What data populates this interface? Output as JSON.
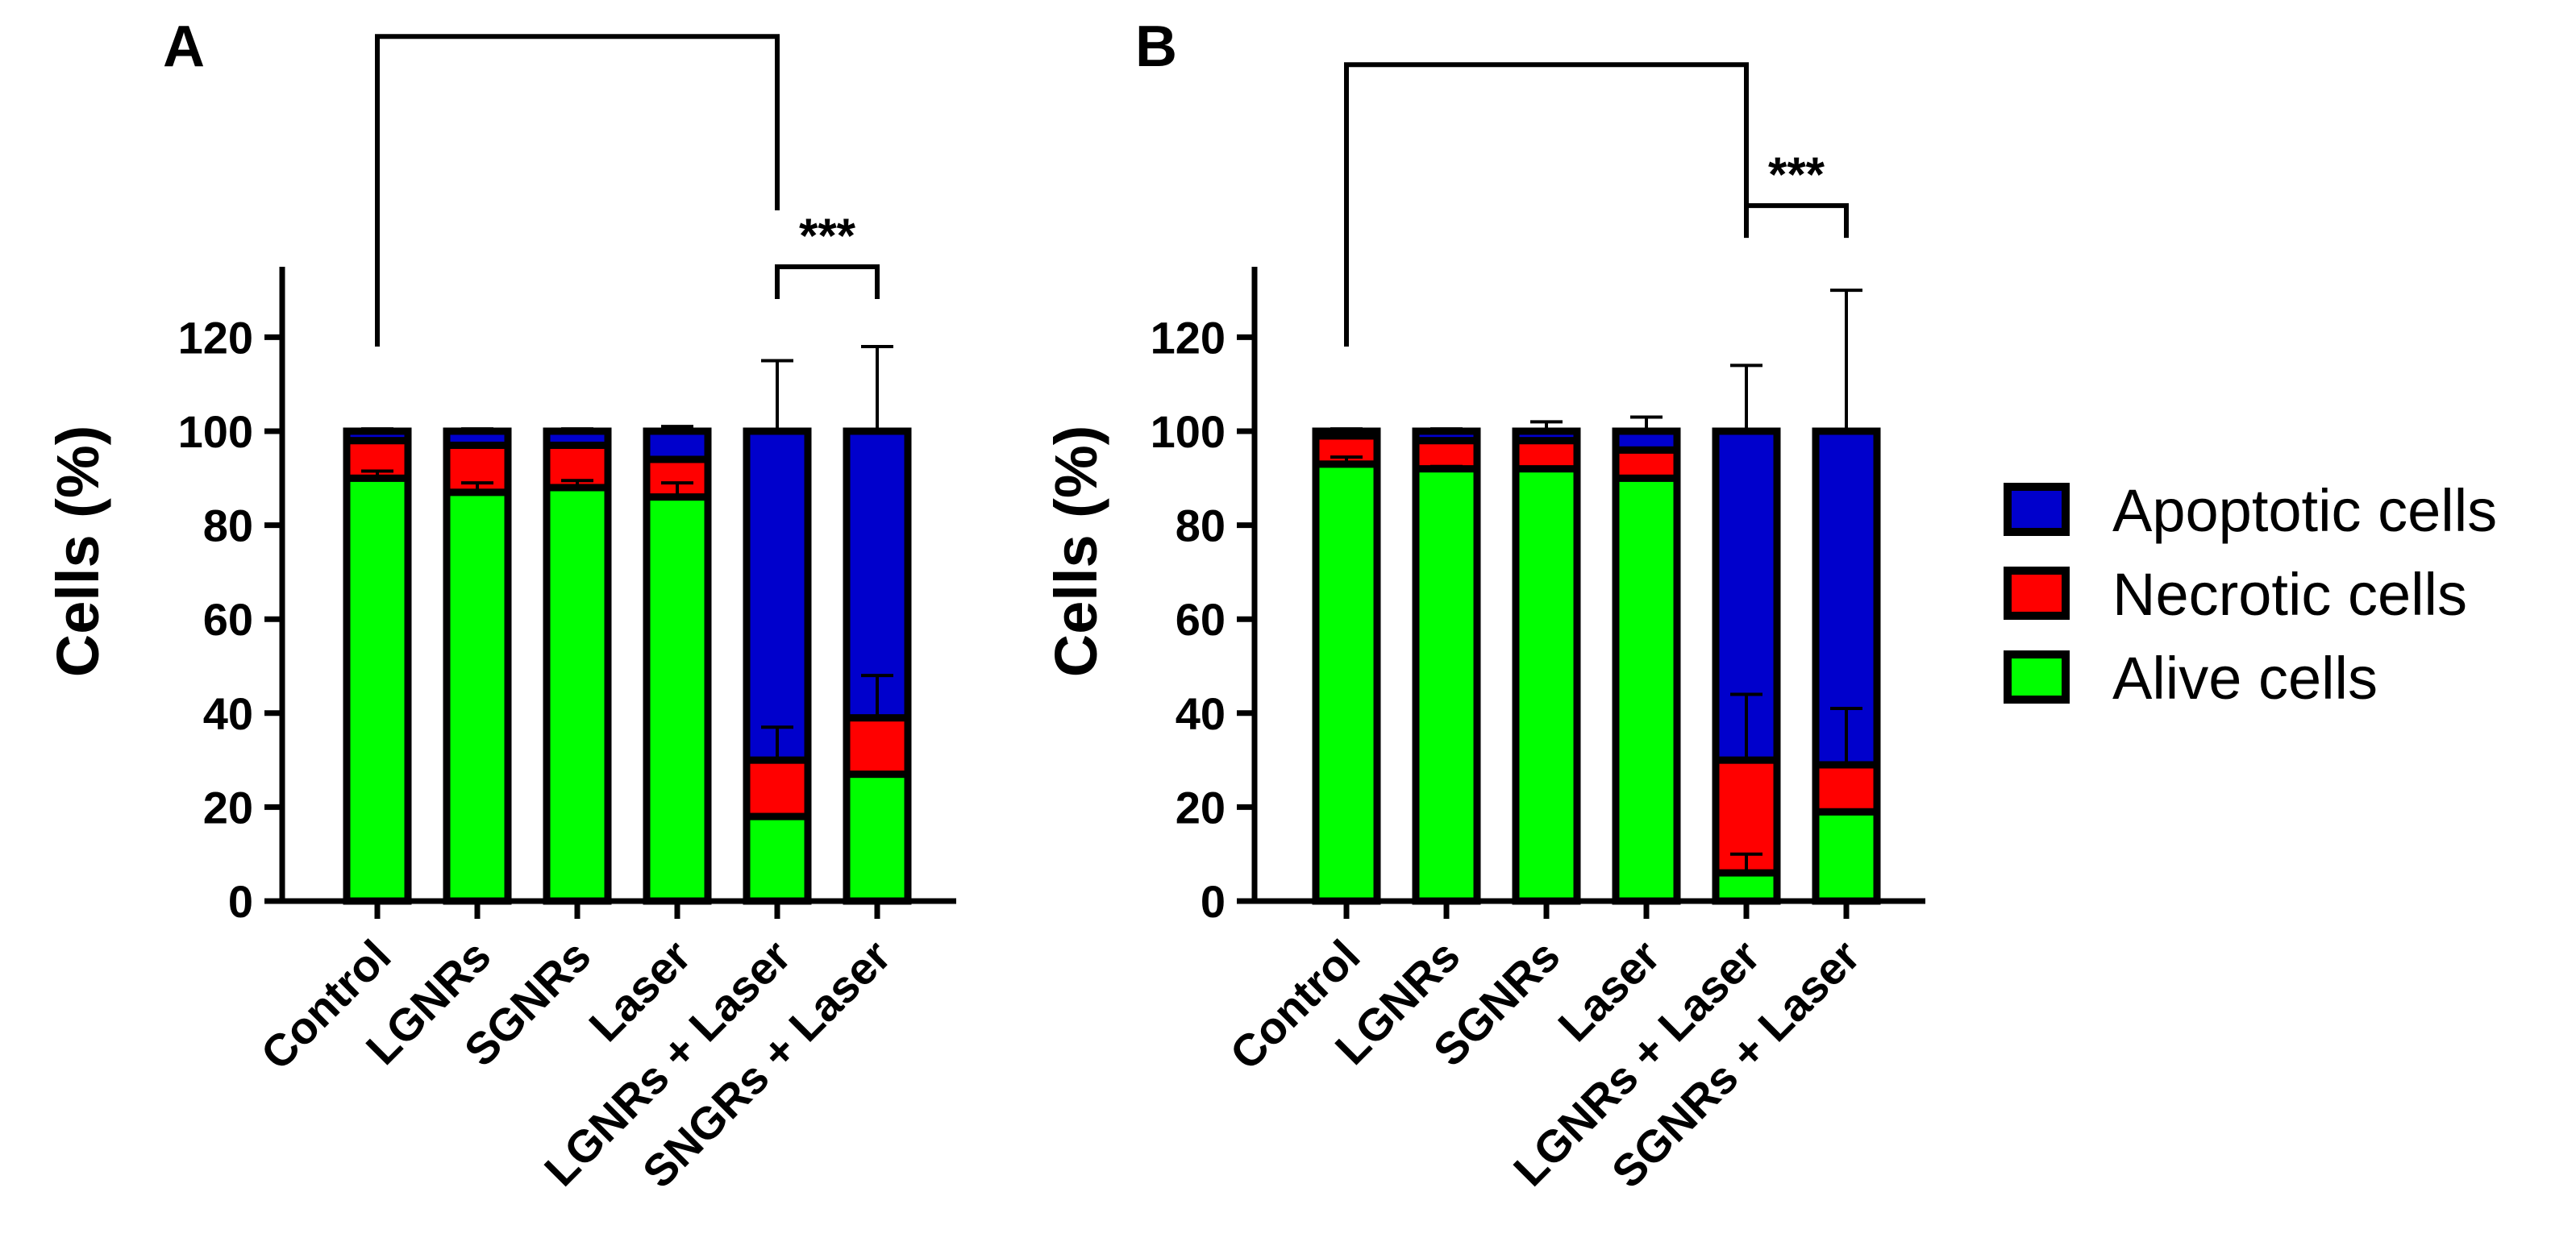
{
  "colors": {
    "alive": "#00ff00",
    "necrotic": "#ff0000",
    "apoptotic": "#0000cc",
    "outline": "#000000"
  },
  "legend": {
    "items": [
      {
        "label": "Apoptotic cells",
        "color": "#0000cc"
      },
      {
        "label": "Necrotic cells",
        "color": "#ff0000"
      },
      {
        "label": "Alive cells",
        "color": "#00ff00"
      }
    ]
  },
  "chart_data": [
    {
      "panel": "A",
      "type": "bar",
      "stacked": true,
      "ylabel": "Cells (%)",
      "ylim": [
        0,
        135
      ],
      "yticks": [
        0,
        20,
        40,
        60,
        80,
        100,
        120
      ],
      "categories": [
        "Control",
        "LGNRs",
        "SGNRs",
        "Laser",
        "LGNRs + Laser",
        "SNGRs + Laser"
      ],
      "series": [
        {
          "name": "Alive cells",
          "values": [
            90,
            87,
            88,
            86,
            18,
            27
          ],
          "errors": [
            1.5,
            2,
            1.5,
            3,
            0,
            0
          ]
        },
        {
          "name": "Necrotic cells",
          "values": [
            8,
            10,
            9,
            8,
            12,
            12
          ],
          "errors": [
            0,
            0,
            0,
            0,
            7,
            9
          ]
        },
        {
          "name": "Apoptotic cells",
          "values": [
            2,
            3,
            3,
            6,
            70,
            61
          ],
          "errors": [
            0.5,
            0.5,
            0.5,
            1,
            15,
            18
          ]
        }
      ],
      "significance": [
        {
          "label": "***",
          "from": 4,
          "to": 5,
          "level": 135
        },
        {
          "label": "",
          "from": 0,
          "to": 4,
          "level": 184
        }
      ]
    },
    {
      "panel": "B",
      "type": "bar",
      "stacked": true,
      "ylabel": "Cells (%)",
      "ylim": [
        0,
        135
      ],
      "yticks": [
        0,
        20,
        40,
        60,
        80,
        100,
        120
      ],
      "categories": [
        "Control",
        "LGNRs",
        "SGNRs",
        "Laser",
        "LGNRs + Laser",
        "SGNRs + Laser"
      ],
      "series": [
        {
          "name": "Alive cells",
          "values": [
            93,
            92,
            92,
            90,
            6,
            19
          ],
          "errors": [
            1.5,
            0.5,
            0,
            0,
            4,
            0
          ]
        },
        {
          "name": "Necrotic cells",
          "values": [
            6,
            6,
            6,
            6,
            24,
            10
          ],
          "errors": [
            0,
            0,
            0,
            0,
            14,
            12
          ]
        },
        {
          "name": "Apoptotic cells",
          "values": [
            1,
            2,
            2,
            4,
            70,
            71
          ],
          "errors": [
            0.5,
            0.5,
            2,
            3,
            14,
            30
          ]
        }
      ],
      "significance": [
        {
          "label": "***",
          "from": 4,
          "to": 5,
          "level": 148
        },
        {
          "label": "",
          "from": 0,
          "to": 4,
          "level": 178
        }
      ]
    }
  ]
}
